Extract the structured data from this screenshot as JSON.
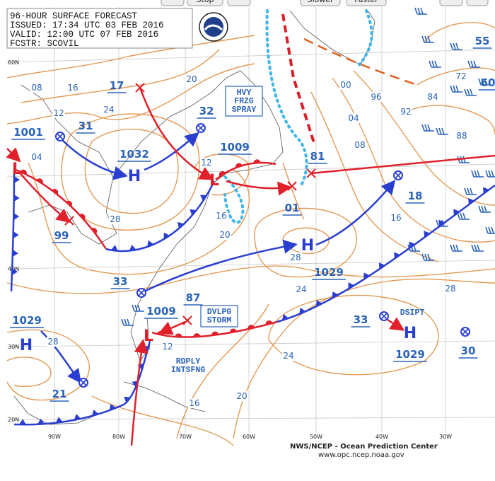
{
  "toolbar": {
    "buttons": [
      "Stop",
      "Slower",
      "Faster"
    ]
  },
  "header": {
    "title": "96-HOUR SURFACE FORECAST",
    "issued": "ISSUED: 17:34 UTC 03 FEB 2016",
    "valid": "VALID:  12:00 UTC 07 FEB 2016",
    "forecaster": "FCSTR:  SCOVIL"
  },
  "pressure_labels": [
    "1001",
    "31",
    "17",
    "1032",
    "32",
    "1009",
    "81",
    "01",
    "18",
    "99",
    "33",
    "1029",
    "87",
    "1009",
    "33",
    "1029",
    "21",
    "30",
    "1029",
    "55",
    "60"
  ],
  "isobar_labels": [
    "08",
    "16",
    "12",
    "24",
    "20",
    "04",
    "28",
    "12",
    "16",
    "20",
    "00",
    "96",
    "92",
    "84",
    "72",
    "88",
    "04",
    "08",
    "16",
    "28",
    "24",
    "28",
    "28",
    "24",
    "20",
    "16",
    "12"
  ],
  "centers": [
    "H",
    "H",
    "H",
    "H",
    "L",
    "L",
    "L"
  ],
  "annotations": [
    {
      "lines": [
        "HVY",
        "FRZG",
        "SPRAY"
      ]
    },
    {
      "lines": [
        "DVLPG",
        "STORM"
      ]
    },
    {
      "lines": [
        "RDPLY",
        "INTSFNG"
      ]
    },
    {
      "lines": [
        "DSIPT"
      ]
    }
  ],
  "latitude_labels": [
    "60N",
    "40N",
    "30N",
    "20N"
  ],
  "longitude_labels": [
    "90W",
    "80W",
    "70W",
    "60W",
    "50W",
    "40W",
    "30W"
  ],
  "footer": {
    "agency": "NWS/NCEP - Ocean Prediction Center",
    "url": "www.opc.ncep.noaa.gov"
  }
}
